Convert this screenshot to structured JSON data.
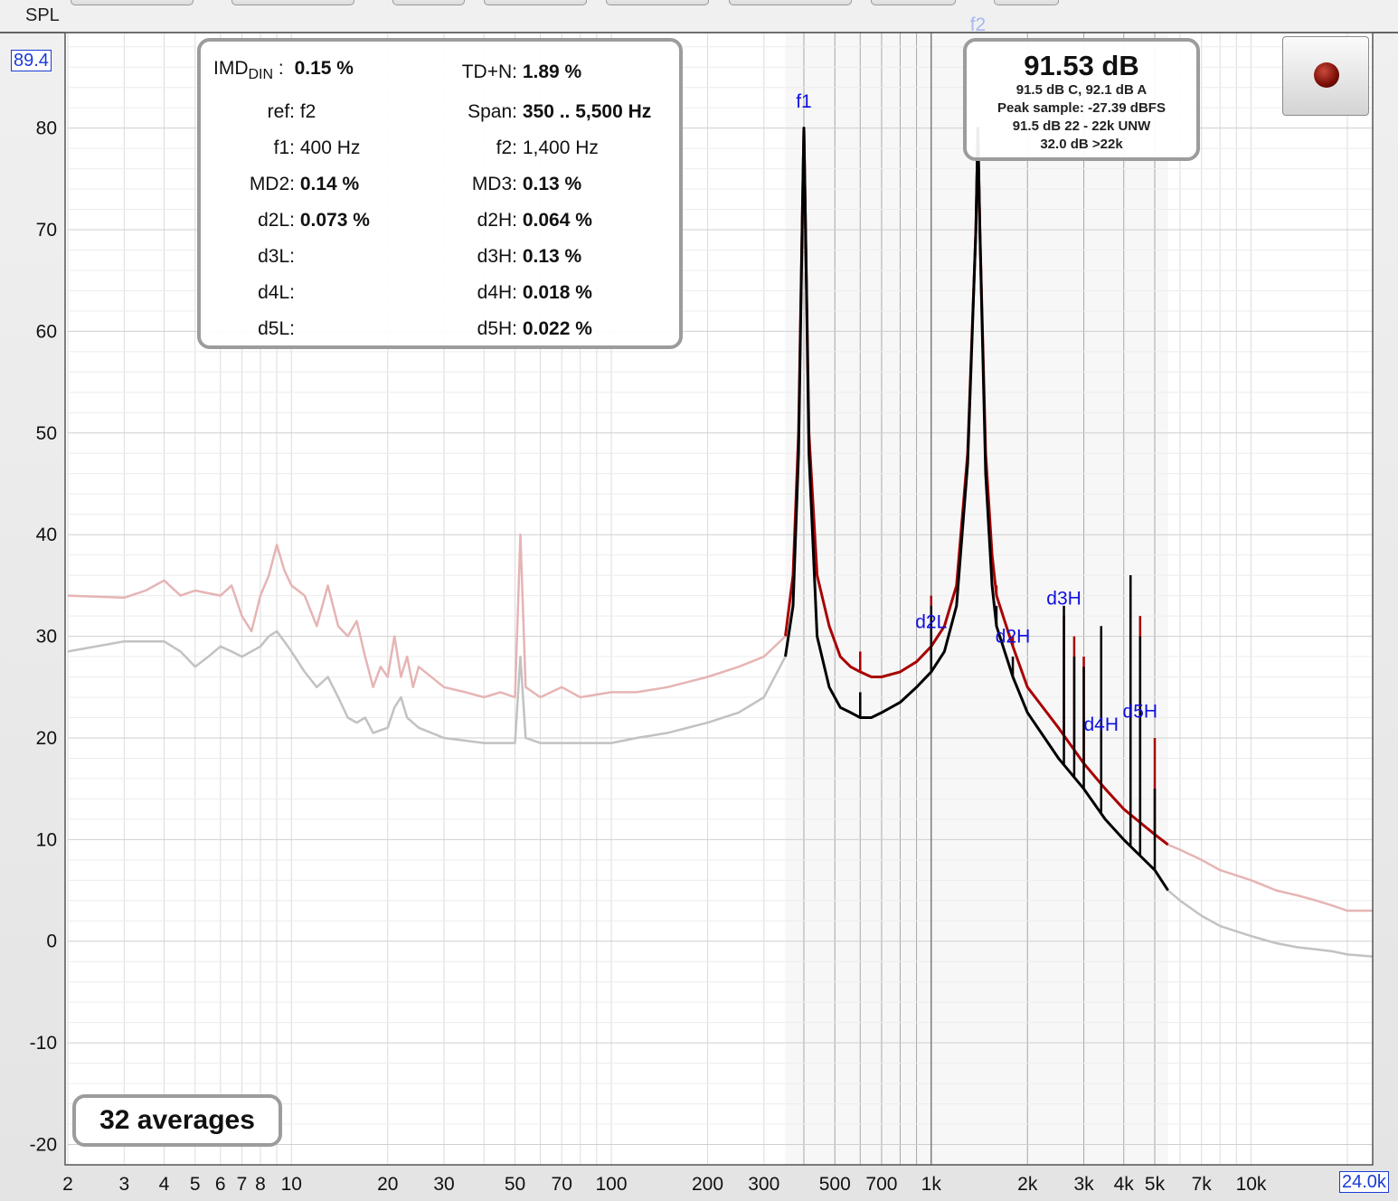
{
  "axis_label": "SPL",
  "top_value": "89.4",
  "right_value": "24.0k",
  "imd_panel": {
    "rows": [
      {
        "label": "IMD",
        "label_sub": "DIN",
        "label_suffix": " :",
        "value": "0.15 %",
        "bold": true
      },
      {
        "label": "TD+N:",
        "value": "1.89 %",
        "bold": true
      },
      {
        "label": "ref:",
        "value": "f2",
        "bold": false
      },
      {
        "label": "Span:",
        "value": "350 .. 5,500 Hz",
        "bold": true
      },
      {
        "label": "f1:",
        "value": "400 Hz",
        "bold": false
      },
      {
        "label": "f2:",
        "value": "1,400 Hz",
        "bold": false
      },
      {
        "label": "MD2:",
        "value": "0.14 %",
        "bold": true
      },
      {
        "label": "MD3:",
        "value": "0.13 %",
        "bold": true
      },
      {
        "label": "d2L:",
        "value": "0.073 %",
        "bold": true
      },
      {
        "label": "d2H:",
        "value": "0.064 %",
        "bold": true
      },
      {
        "label": "d3L:",
        "value": "",
        "bold": true
      },
      {
        "label": "d3H:",
        "value": "0.13 %",
        "bold": true
      },
      {
        "label": "d4L:",
        "value": "",
        "bold": true
      },
      {
        "label": "d4H:",
        "value": "0.018 %",
        "bold": true
      },
      {
        "label": "d5L:",
        "value": "",
        "bold": true
      },
      {
        "label": "d5H:",
        "value": "0.022 %",
        "bold": true
      }
    ]
  },
  "level_panel": {
    "main": "91.53 dB",
    "lines": [
      "91.5 dB C, 92.1 dB A",
      "Peak sample: -27.39 dBFS",
      "91.5 dB 22 - 22k UNW",
      "32.0 dB >22k"
    ]
  },
  "record_button": {
    "icon": "record-icon",
    "color": "#8b1a0e"
  },
  "averages_label": "32 averages",
  "chart_data": {
    "type": "line",
    "x_scale": "log",
    "xlim": [
      2,
      24000
    ],
    "ylim": [
      -22,
      89.4
    ],
    "grid": true,
    "analysis_span": [
      350,
      5500
    ],
    "ylabel": "SPL",
    "x_ticks": [
      {
        "v": 2,
        "t": "2"
      },
      {
        "v": 3,
        "t": "3"
      },
      {
        "v": 4,
        "t": "4"
      },
      {
        "v": 5,
        "t": "5"
      },
      {
        "v": 6,
        "t": "6"
      },
      {
        "v": 7,
        "t": "7"
      },
      {
        "v": 8,
        "t": "8"
      },
      {
        "v": 10,
        "t": "10"
      },
      {
        "v": 20,
        "t": "20"
      },
      {
        "v": 30,
        "t": "30"
      },
      {
        "v": 50,
        "t": "50"
      },
      {
        "v": 70,
        "t": "70"
      },
      {
        "v": 100,
        "t": "100"
      },
      {
        "v": 200,
        "t": "200"
      },
      {
        "v": 300,
        "t": "300"
      },
      {
        "v": 500,
        "t": "500"
      },
      {
        "v": 700,
        "t": "700"
      },
      {
        "v": 1000,
        "t": "1k"
      },
      {
        "v": 2000,
        "t": "2k"
      },
      {
        "v": 3000,
        "t": "3k"
      },
      {
        "v": 4000,
        "t": "4k"
      },
      {
        "v": 5000,
        "t": "5k"
      },
      {
        "v": 7000,
        "t": "7k"
      },
      {
        "v": 10000,
        "t": "10k"
      }
    ],
    "y_ticks": [
      80,
      70,
      60,
      50,
      40,
      30,
      20,
      10,
      0,
      -10,
      -20
    ],
    "markers": [
      {
        "label": "f1",
        "x": 400,
        "y": 82
      },
      {
        "label": "f2",
        "x": 1400,
        "y": 89.6
      },
      {
        "label": "d2L",
        "x": 1000,
        "y": 30.8
      },
      {
        "label": "d2H",
        "x": 1800,
        "y": 29.4
      },
      {
        "label": "d3H",
        "x": 2600,
        "y": 33.1
      },
      {
        "label": "d4H",
        "x": 3400,
        "y": 20.7
      },
      {
        "label": "d5H",
        "x": 4500,
        "y": 22
      }
    ],
    "series": [
      {
        "color": "#a80000",
        "points": [
          [
            350,
            30
          ],
          [
            370,
            36
          ],
          [
            385,
            50
          ],
          [
            396,
            72
          ],
          [
            400,
            80
          ],
          [
            404,
            72
          ],
          [
            415,
            50
          ],
          [
            440,
            36
          ],
          [
            480,
            31
          ],
          [
            520,
            28
          ],
          [
            560,
            27
          ],
          [
            600,
            26.5
          ],
          [
            650,
            26
          ],
          [
            700,
            26
          ],
          [
            800,
            26.5
          ],
          [
            900,
            27.5
          ],
          [
            1000,
            29
          ],
          [
            1100,
            31
          ],
          [
            1200,
            35
          ],
          [
            1300,
            48
          ],
          [
            1380,
            70
          ],
          [
            1400,
            80
          ],
          [
            1420,
            70
          ],
          [
            1480,
            48
          ],
          [
            1550,
            38
          ],
          [
            1600,
            34
          ],
          [
            1800,
            29
          ],
          [
            2000,
            25
          ],
          [
            2500,
            21
          ],
          [
            3000,
            17.5
          ],
          [
            3500,
            15
          ],
          [
            4000,
            13
          ],
          [
            5000,
            10.5
          ],
          [
            5500,
            9.5
          ]
        ],
        "spikes": [
          [
            600,
            28.5
          ],
          [
            1000,
            34
          ],
          [
            1600,
            35
          ],
          [
            1800,
            30
          ],
          [
            2600,
            32
          ],
          [
            2800,
            30
          ],
          [
            3000,
            28
          ],
          [
            3400,
            31
          ],
          [
            4200,
            36
          ],
          [
            4500,
            32
          ],
          [
            5000,
            20
          ]
        ]
      },
      {
        "color": "#000000",
        "points": [
          [
            350,
            28
          ],
          [
            370,
            33
          ],
          [
            385,
            48
          ],
          [
            396,
            72
          ],
          [
            400,
            80
          ],
          [
            404,
            72
          ],
          [
            415,
            48
          ],
          [
            440,
            30
          ],
          [
            480,
            25
          ],
          [
            520,
            23
          ],
          [
            560,
            22.5
          ],
          [
            600,
            22
          ],
          [
            650,
            22
          ],
          [
            700,
            22.5
          ],
          [
            800,
            23.5
          ],
          [
            900,
            25
          ],
          [
            1000,
            26.5
          ],
          [
            1100,
            28.5
          ],
          [
            1200,
            33
          ],
          [
            1300,
            47
          ],
          [
            1380,
            70
          ],
          [
            1400,
            80
          ],
          [
            1420,
            70
          ],
          [
            1480,
            46
          ],
          [
            1550,
            35
          ],
          [
            1600,
            31
          ],
          [
            1800,
            26
          ],
          [
            2000,
            22.5
          ],
          [
            2500,
            18
          ],
          [
            3000,
            15
          ],
          [
            3500,
            12
          ],
          [
            4000,
            10
          ],
          [
            5000,
            7
          ],
          [
            5500,
            5
          ]
        ],
        "spikes": [
          [
            600,
            24.5
          ],
          [
            1000,
            33
          ],
          [
            1600,
            33
          ],
          [
            1800,
            28
          ],
          [
            2600,
            33
          ],
          [
            2800,
            28
          ],
          [
            3000,
            27
          ],
          [
            3400,
            31
          ],
          [
            4200,
            36
          ],
          [
            4500,
            30
          ],
          [
            5000,
            15
          ]
        ]
      },
      {
        "color": "#e6b4b4",
        "points": [
          [
            2,
            34
          ],
          [
            3,
            33.8
          ],
          [
            3.5,
            34.5
          ],
          [
            4,
            35.5
          ],
          [
            4.5,
            34
          ],
          [
            5,
            34.5
          ],
          [
            6,
            34
          ],
          [
            6.5,
            35
          ],
          [
            7,
            32
          ],
          [
            7.5,
            30.5
          ],
          [
            8,
            34
          ],
          [
            8.5,
            36
          ],
          [
            9,
            39
          ],
          [
            9.5,
            36.5
          ],
          [
            10,
            35
          ],
          [
            11,
            34
          ],
          [
            12,
            31
          ],
          [
            13,
            35
          ],
          [
            14,
            31
          ],
          [
            15,
            30
          ],
          [
            16,
            31.5
          ],
          [
            17,
            28
          ],
          [
            18,
            25
          ],
          [
            19,
            27
          ],
          [
            20,
            26
          ],
          [
            21,
            30
          ],
          [
            22,
            26
          ],
          [
            23,
            28
          ],
          [
            24,
            25
          ],
          [
            25,
            27
          ],
          [
            30,
            25
          ],
          [
            35,
            24.5
          ],
          [
            40,
            24
          ],
          [
            45,
            24.5
          ],
          [
            50,
            24
          ],
          [
            52,
            40
          ],
          [
            54,
            25
          ],
          [
            60,
            24
          ],
          [
            70,
            25
          ],
          [
            80,
            24
          ],
          [
            100,
            24.5
          ],
          [
            120,
            24.5
          ],
          [
            150,
            25
          ],
          [
            200,
            26
          ],
          [
            250,
            27
          ],
          [
            300,
            28
          ],
          [
            350,
            30
          ]
        ]
      },
      {
        "color": "#c2c2c2",
        "points": [
          [
            2,
            28.5
          ],
          [
            3,
            29.5
          ],
          [
            4,
            29.5
          ],
          [
            4.5,
            28.5
          ],
          [
            5,
            27
          ],
          [
            5.5,
            28
          ],
          [
            6,
            29
          ],
          [
            6.5,
            28.5
          ],
          [
            7,
            28
          ],
          [
            8,
            29
          ],
          [
            8.5,
            30
          ],
          [
            9,
            30.5
          ],
          [
            9.5,
            29.5
          ],
          [
            10,
            28.5
          ],
          [
            11,
            26.5
          ],
          [
            12,
            25
          ],
          [
            13,
            26
          ],
          [
            14,
            24
          ],
          [
            15,
            22
          ],
          [
            16,
            21.5
          ],
          [
            17,
            22
          ],
          [
            18,
            20.5
          ],
          [
            20,
            21
          ],
          [
            21,
            23
          ],
          [
            22,
            24
          ],
          [
            23,
            22
          ],
          [
            25,
            21
          ],
          [
            30,
            20
          ],
          [
            40,
            19.5
          ],
          [
            50,
            19.5
          ],
          [
            52,
            28
          ],
          [
            54,
            20
          ],
          [
            60,
            19.5
          ],
          [
            70,
            19.5
          ],
          [
            80,
            19.5
          ],
          [
            100,
            19.5
          ],
          [
            120,
            20
          ],
          [
            150,
            20.5
          ],
          [
            200,
            21.5
          ],
          [
            250,
            22.5
          ],
          [
            300,
            24
          ],
          [
            350,
            28
          ]
        ]
      },
      {
        "color": "#e6b4b4",
        "points": [
          [
            5500,
            9.5
          ],
          [
            6000,
            9
          ],
          [
            7000,
            8
          ],
          [
            8000,
            7
          ],
          [
            10000,
            6
          ],
          [
            12000,
            5
          ],
          [
            14000,
            4.5
          ],
          [
            16000,
            4
          ],
          [
            18000,
            3.5
          ],
          [
            20000,
            3
          ],
          [
            24000,
            3
          ]
        ]
      },
      {
        "color": "#c2c2c2",
        "points": [
          [
            5500,
            5
          ],
          [
            6000,
            4
          ],
          [
            7000,
            2.5
          ],
          [
            8000,
            1.5
          ],
          [
            10000,
            0.5
          ],
          [
            12000,
            -0.2
          ],
          [
            14000,
            -0.6
          ],
          [
            16000,
            -0.8
          ],
          [
            18000,
            -1
          ],
          [
            20000,
            -1.3
          ],
          [
            24000,
            -1.5
          ]
        ]
      }
    ]
  }
}
